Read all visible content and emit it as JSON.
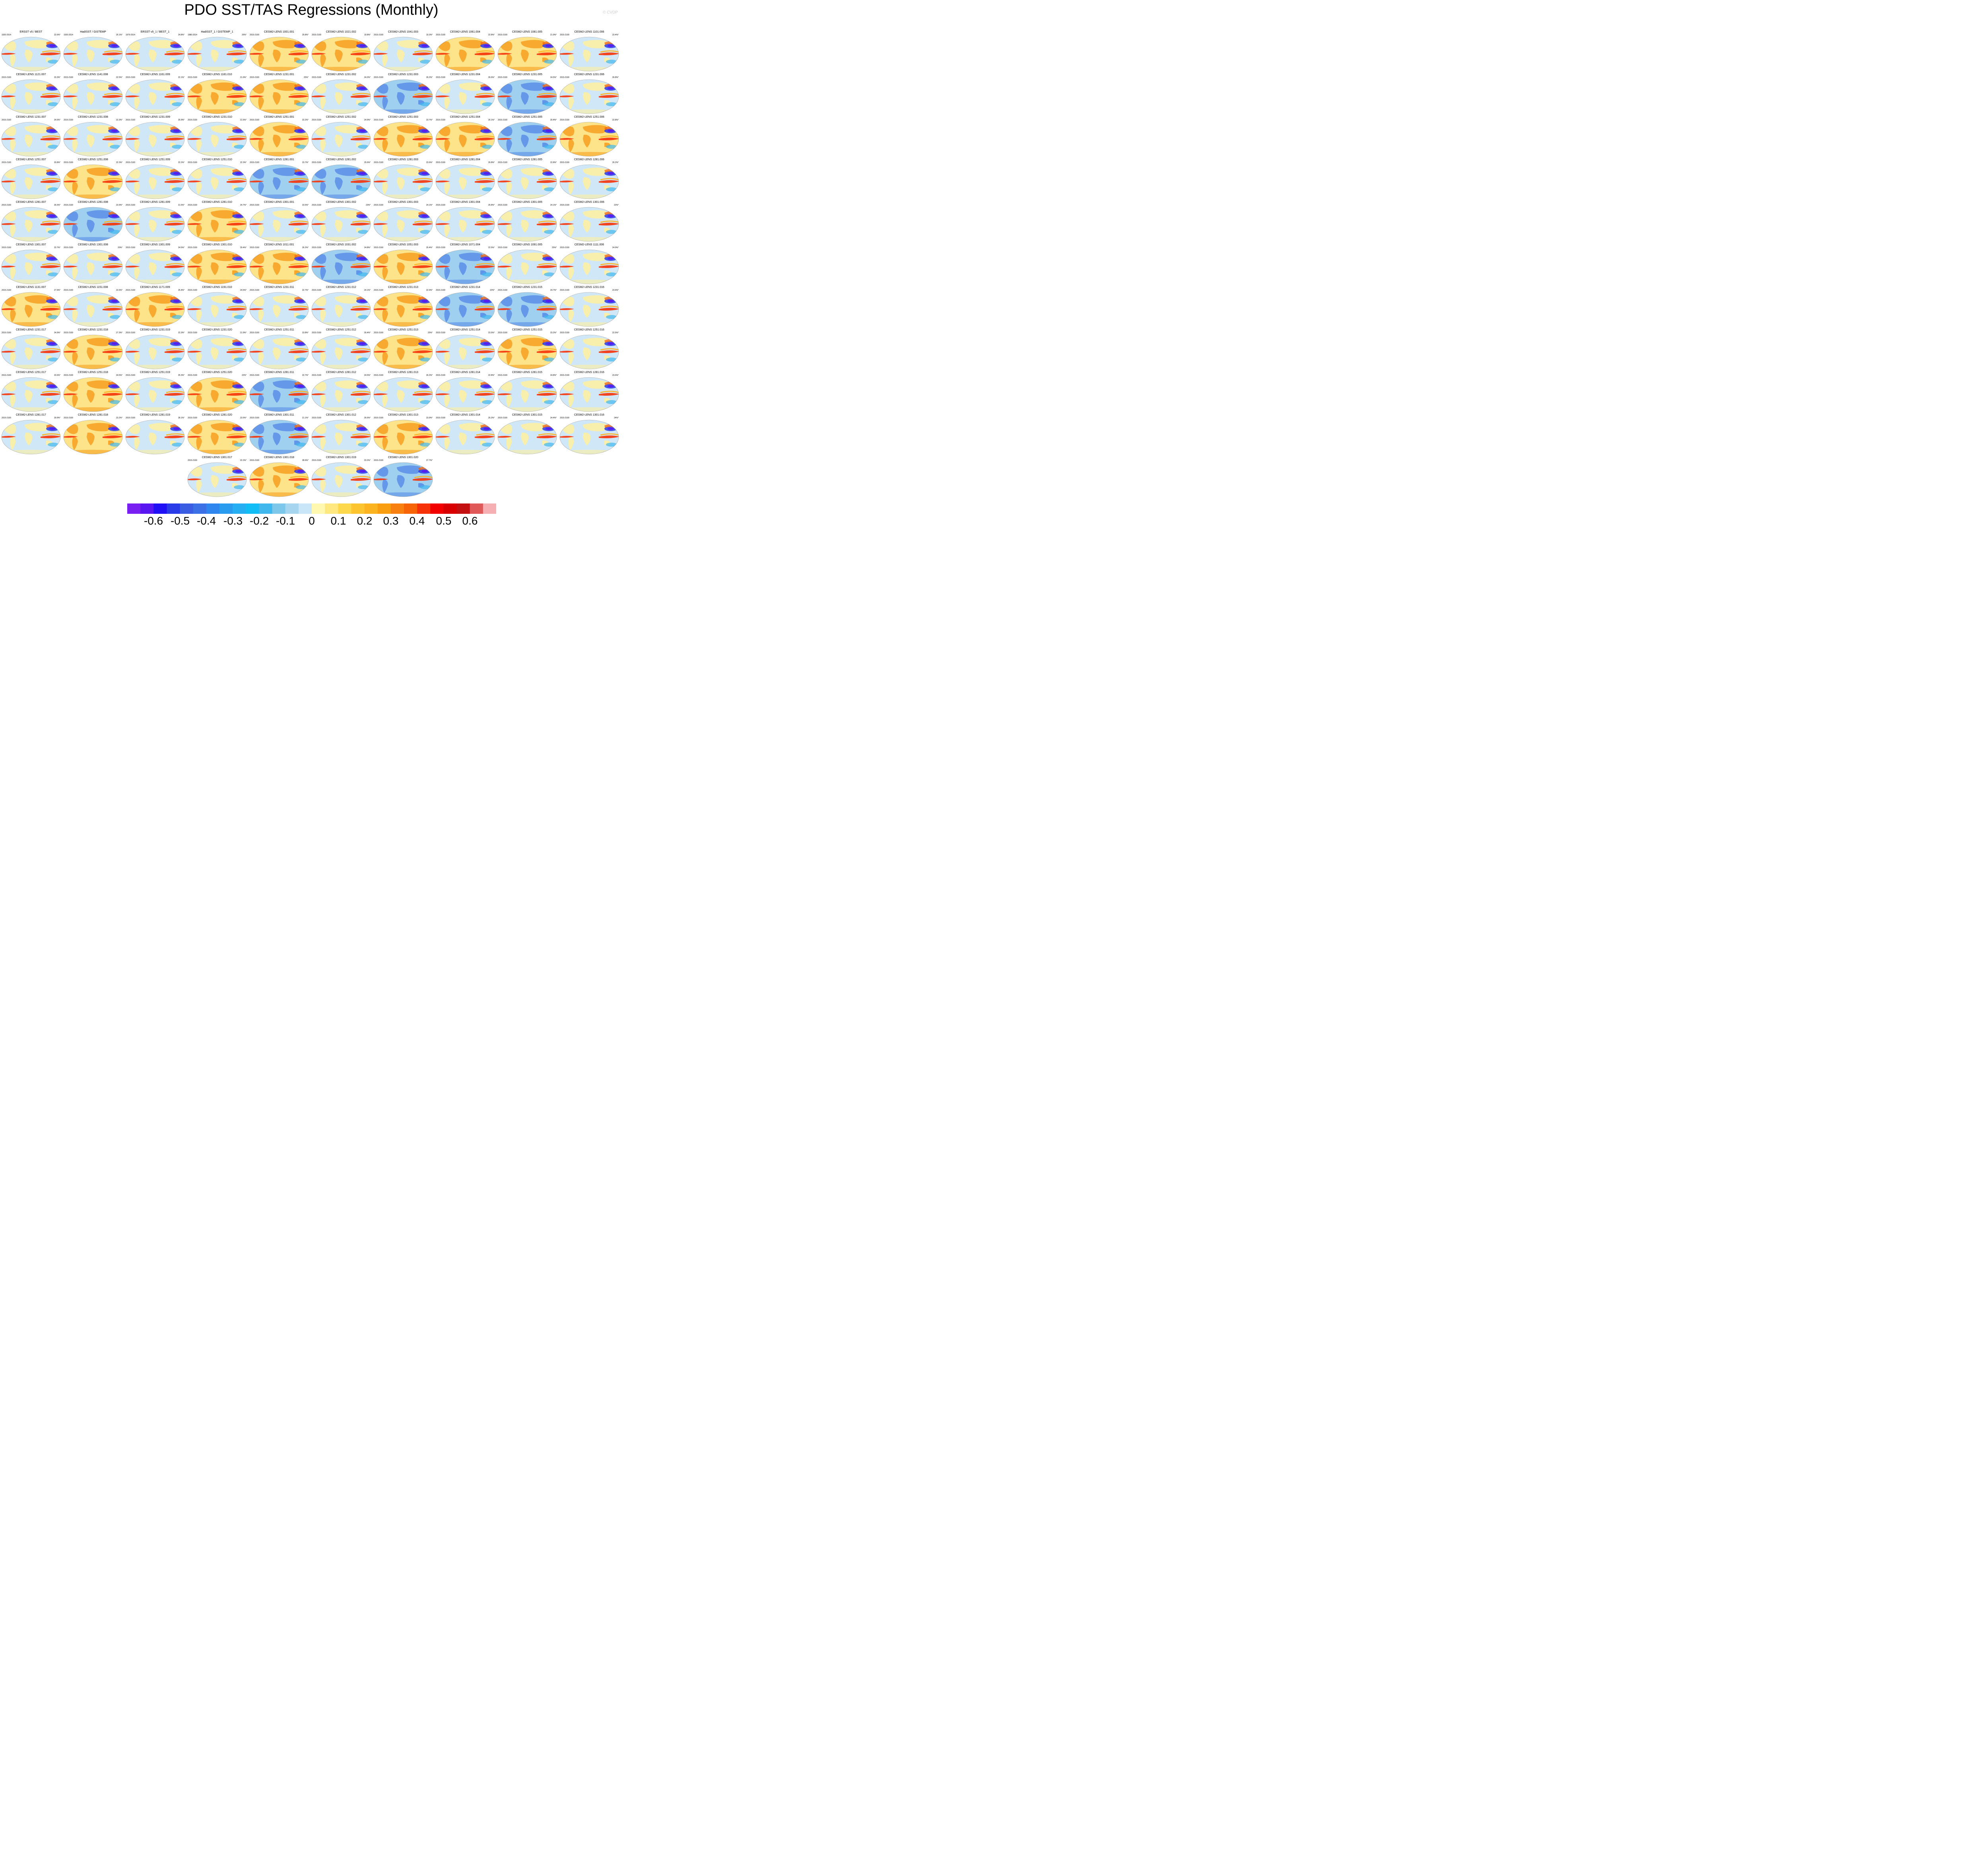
{
  "title": "PDO SST/TAS Regressions (Monthly)",
  "credit": "© CVDP",
  "colorbar": {
    "colors": [
      "#7a1ff2",
      "#5a16f0",
      "#2010f5",
      "#2a3ce8",
      "#3a5de3",
      "#3b70e6",
      "#2e86ee",
      "#2a9cf0",
      "#26aef2",
      "#12bcf5",
      "#40b8ee",
      "#7cc7ea",
      "#a6d6ef",
      "#c8e6f7",
      "#fff8b0",
      "#ffe880",
      "#fdd84d",
      "#fcc530",
      "#fcb320",
      "#f99e10",
      "#f88010",
      "#f76408",
      "#f63208",
      "#f20000",
      "#d80000",
      "#c41010",
      "#e05858",
      "#f6b0b4"
    ],
    "tick_labels": [
      "-0.6",
      "-0.5",
      "-0.4",
      "-0.3",
      "-0.2",
      "-0.1",
      "0",
      "0.1",
      "0.2",
      "0.3",
      "0.4",
      "0.5",
      "0.6"
    ]
  },
  "panels": [
    {
      "name": "ERSST v5 / BEST",
      "years": "1920-2014",
      "pct": "22.6%*"
    },
    {
      "name": "HadISST / GISTEMP",
      "years": "1920-2014",
      "pct": "25.1%*"
    },
    {
      "name": "ERSST v5_1 / BEST_1",
      "years": "1979-2014",
      "pct": "24.8%*"
    },
    {
      "name": "HadISST_1 / GISTEMP_1",
      "years": "1980-2014",
      "pct": "26%*"
    },
    {
      "name": "CESM2-LENS 1001.001",
      "years": "2015-2100",
      "pct": "25.8%*"
    },
    {
      "name": "CESM2-LENS 1021.002",
      "years": "2015-2100",
      "pct": "19.8%*"
    },
    {
      "name": "CESM2-LENS 1041.003",
      "years": "2015-2100",
      "pct": "19.3%*"
    },
    {
      "name": "CESM2-LENS 1061.004",
      "years": "2015-2100",
      "pct": "22.8%*"
    },
    {
      "name": "CESM2-LENS 1081.005",
      "years": "2015-2100",
      "pct": "21.9%*"
    },
    {
      "name": "CESM2-LENS 1101.006",
      "years": "2015-2100",
      "pct": "23.4%*"
    },
    {
      "name": "CESM2-LENS 1121.007",
      "years": "2015-2100",
      "pct": "23.3%*"
    },
    {
      "name": "CESM2-LENS 1141.008",
      "years": "2015-2100",
      "pct": "22.5%*"
    },
    {
      "name": "CESM2-LENS 1161.009",
      "years": "2015-2100",
      "pct": "22.1%*"
    },
    {
      "name": "CESM2-LENS 1181.010",
      "years": "2015-2100",
      "pct": "21.9%*"
    },
    {
      "name": "CESM2-LENS 1231.001",
      "years": "2015-2100",
      "pct": "25%*"
    },
    {
      "name": "CESM2-LENS 1231.002",
      "years": "2015-2100",
      "pct": "24.2%*"
    },
    {
      "name": "CESM2-LENS 1231.003",
      "years": "2015-2100",
      "pct": "26.2%*"
    },
    {
      "name": "CESM2-LENS 1231.004",
      "years": "2015-2100",
      "pct": "26.6%*"
    },
    {
      "name": "CESM2-LENS 1231.005",
      "years": "2015-2100",
      "pct": "24.5%*"
    },
    {
      "name": "CESM2-LENS 1231.006",
      "years": "2015-2100",
      "pct": "26.8%*"
    },
    {
      "name": "CESM2-LENS 1231.007",
      "years": "2015-2100",
      "pct": "24.6%*"
    },
    {
      "name": "CESM2-LENS 1231.008",
      "years": "2015-2100",
      "pct": "22.3%*"
    },
    {
      "name": "CESM2-LENS 1231.009",
      "years": "2015-2100",
      "pct": "25.9%*"
    },
    {
      "name": "CESM2-LENS 1231.010",
      "years": "2015-2100",
      "pct": "21.5%*"
    },
    {
      "name": "CESM2-LENS 1251.001",
      "years": "2015-2100",
      "pct": "22.2%*"
    },
    {
      "name": "CESM2-LENS 1251.002",
      "years": "2015-2100",
      "pct": "24.9%*"
    },
    {
      "name": "CESM2-LENS 1251.003",
      "years": "2015-2100",
      "pct": "23.7%*"
    },
    {
      "name": "CESM2-LENS 1251.004",
      "years": "2015-2100",
      "pct": "26.1%*"
    },
    {
      "name": "CESM2-LENS 1251.005",
      "years": "2015-2100",
      "pct": "20.4%*"
    },
    {
      "name": "CESM2-LENS 1251.006",
      "years": "2015-2100",
      "pct": "22.8%*"
    },
    {
      "name": "CESM2-LENS 1251.007",
      "years": "2015-2100",
      "pct": "20.8%*"
    },
    {
      "name": "CESM2-LENS 1251.008",
      "years": "2015-2100",
      "pct": "22.3%*"
    },
    {
      "name": "CESM2-LENS 1251.009",
      "years": "2015-2100",
      "pct": "22.2%*"
    },
    {
      "name": "CESM2-LENS 1251.010",
      "years": "2015-2100",
      "pct": "22.3%*"
    },
    {
      "name": "CESM2-LENS 1281.001",
      "years": "2015-2100",
      "pct": "23.7%*"
    },
    {
      "name": "CESM2-LENS 1281.002",
      "years": "2015-2100",
      "pct": "25.6%*"
    },
    {
      "name": "CESM2-LENS 1281.003",
      "years": "2015-2100",
      "pct": "23.6%*"
    },
    {
      "name": "CESM2-LENS 1281.004",
      "years": "2015-2100",
      "pct": "26.8%*"
    },
    {
      "name": "CESM2-LENS 1281.005",
      "years": "2015-2100",
      "pct": "22.8%*"
    },
    {
      "name": "CESM2-LENS 1281.006",
      "years": "2015-2100",
      "pct": "26.2%*"
    },
    {
      "name": "CESM2-LENS 1281.007",
      "years": "2015-2100",
      "pct": "26.5%*"
    },
    {
      "name": "CESM2-LENS 1281.008",
      "years": "2015-2100",
      "pct": "23.9%*"
    },
    {
      "name": "CESM2-LENS 1281.009",
      "years": "2015-2100",
      "pct": "21.5%*"
    },
    {
      "name": "CESM2-LENS 1281.010",
      "years": "2015-2100",
      "pct": "24.7%*"
    },
    {
      "name": "CESM2-LENS 1301.001",
      "years": "2015-2100",
      "pct": "23.5%*"
    },
    {
      "name": "CESM2-LENS 1301.002",
      "years": "2015-2100",
      "pct": "23%*"
    },
    {
      "name": "CESM2-LENS 1301.003",
      "years": "2015-2100",
      "pct": "24.1%*"
    },
    {
      "name": "CESM2-LENS 1301.004",
      "years": "2015-2100",
      "pct": "25.8%*"
    },
    {
      "name": "CESM2-LENS 1301.005",
      "years": "2015-2100",
      "pct": "24.1%*"
    },
    {
      "name": "CESM2-LENS 1301.006",
      "years": "2015-2100",
      "pct": "22%*"
    },
    {
      "name": "CESM2-LENS 1301.007",
      "years": "2015-2100",
      "pct": "23.7%*"
    },
    {
      "name": "CESM2-LENS 1301.008",
      "years": "2015-2100",
      "pct": "20%*"
    },
    {
      "name": "CESM2-LENS 1301.009",
      "years": "2015-2100",
      "pct": "24.5%*"
    },
    {
      "name": "CESM2-LENS 1301.010",
      "years": "2015-2100",
      "pct": "29.4%*"
    },
    {
      "name": "CESM2-LENS 1011.001",
      "years": "2015-2100",
      "pct": "26.2%*"
    },
    {
      "name": "CESM2-LENS 1031.002",
      "years": "2015-2100",
      "pct": "24.8%*"
    },
    {
      "name": "CESM2-LENS 1051.003",
      "years": "2015-2100",
      "pct": "25.4%*"
    },
    {
      "name": "CESM2-LENS 1071.004",
      "years": "2015-2100",
      "pct": "22.5%*"
    },
    {
      "name": "CESM2-LENS 1091.005",
      "years": "2015-2100",
      "pct": "25%*"
    },
    {
      "name": "CESM2-LENS 1111.006",
      "years": "2015-2100",
      "pct": "24.9%*"
    },
    {
      "name": "CESM2-LENS 1131.007",
      "years": "2015-2100",
      "pct": "27.9%*"
    },
    {
      "name": "CESM2-LENS 1151.008",
      "years": "2015-2100",
      "pct": "22.6%*"
    },
    {
      "name": "CESM2-LENS 1171.009",
      "years": "2015-2100",
      "pct": "25.4%*"
    },
    {
      "name": "CESM2-LENS 1191.010",
      "years": "2015-2100",
      "pct": "24.5%*"
    },
    {
      "name": "CESM2-LENS 1231.011",
      "years": "2015-2100",
      "pct": "22.7%*"
    },
    {
      "name": "CESM2-LENS 1231.012",
      "years": "2015-2100",
      "pct": "24.1%*"
    },
    {
      "name": "CESM2-LENS 1231.013",
      "years": "2015-2100",
      "pct": "22.9%*"
    },
    {
      "name": "CESM2-LENS 1231.014",
      "years": "2015-2100",
      "pct": "22%*"
    },
    {
      "name": "CESM2-LENS 1231.015",
      "years": "2015-2100",
      "pct": "24.7%*"
    },
    {
      "name": "CESM2-LENS 1231.016",
      "years": "2015-2100",
      "pct": "23.6%*"
    },
    {
      "name": "CESM2-LENS 1231.017",
      "years": "2015-2100",
      "pct": "24.9%*"
    },
    {
      "name": "CESM2-LENS 1231.018",
      "years": "2015-2100",
      "pct": "27.3%*"
    },
    {
      "name": "CESM2-LENS 1231.019",
      "years": "2015-2100",
      "pct": "22.3%*"
    },
    {
      "name": "CESM2-LENS 1231.020",
      "years": "2015-2100",
      "pct": "21.9%*"
    },
    {
      "name": "CESM2-LENS 1251.011",
      "years": "2015-2100",
      "pct": "23.8%*"
    },
    {
      "name": "CESM2-LENS 1251.012",
      "years": "2015-2100",
      "pct": "30.4%*"
    },
    {
      "name": "CESM2-LENS 1251.013",
      "years": "2015-2100",
      "pct": "25%*"
    },
    {
      "name": "CESM2-LENS 1251.014",
      "years": "2015-2100",
      "pct": "23.5%*"
    },
    {
      "name": "CESM2-LENS 1251.015",
      "years": "2015-2100",
      "pct": "23.2%*"
    },
    {
      "name": "CESM2-LENS 1251.016",
      "years": "2015-2100",
      "pct": "22.5%*"
    },
    {
      "name": "CESM2-LENS 1251.017",
      "years": "2015-2100",
      "pct": "23.6%*"
    },
    {
      "name": "CESM2-LENS 1251.018",
      "years": "2015-2100",
      "pct": "24.5%*"
    },
    {
      "name": "CESM2-LENS 1251.019",
      "years": "2015-2100",
      "pct": "25.3%*"
    },
    {
      "name": "CESM2-LENS 1251.020",
      "years": "2015-2100",
      "pct": "22%*"
    },
    {
      "name": "CESM2-LENS 1281.011",
      "years": "2015-2100",
      "pct": "22.7%*"
    },
    {
      "name": "CESM2-LENS 1281.012",
      "years": "2015-2100",
      "pct": "24.5%*"
    },
    {
      "name": "CESM2-LENS 1281.013",
      "years": "2015-2100",
      "pct": "26.2%*"
    },
    {
      "name": "CESM2-LENS 1281.014",
      "years": "2015-2100",
      "pct": "22.8%*"
    },
    {
      "name": "CESM2-LENS 1281.015",
      "years": "2015-2100",
      "pct": "24.8%*"
    },
    {
      "name": "CESM2-LENS 1281.016",
      "years": "2015-2100",
      "pct": "23.6%*"
    },
    {
      "name": "CESM2-LENS 1281.017",
      "years": "2015-2100",
      "pct": "29.9%*"
    },
    {
      "name": "CESM2-LENS 1281.018",
      "years": "2015-2100",
      "pct": "23.2%*"
    },
    {
      "name": "CESM2-LENS 1281.019",
      "years": "2015-2100",
      "pct": "28.1%*"
    },
    {
      "name": "CESM2-LENS 1281.020",
      "years": "2015-2100",
      "pct": "23.5%*"
    },
    {
      "name": "CESM2-LENS 1301.011",
      "years": "2015-2100",
      "pct": "21.1%*"
    },
    {
      "name": "CESM2-LENS 1301.012",
      "years": "2015-2100",
      "pct": "26.6%*"
    },
    {
      "name": "CESM2-LENS 1301.013",
      "years": "2015-2100",
      "pct": "23.9%*"
    },
    {
      "name": "CESM2-LENS 1301.014",
      "years": "2015-2100",
      "pct": "25.2%*"
    },
    {
      "name": "CESM2-LENS 1301.015",
      "years": "2015-2100",
      "pct": "24.4%*"
    },
    {
      "name": "CESM2-LENS 1301.016",
      "years": "2015-2100",
      "pct": "24%*"
    },
    {
      "name": "CESM2-LENS 1301.017",
      "years": "2015-2100",
      "pct": "22.2%*"
    },
    {
      "name": "CESM2-LENS 1301.018",
      "years": "2015-2100",
      "pct": "28.6%*"
    },
    {
      "name": "CESM2-LENS 1301.019",
      "years": "2015-2100",
      "pct": "23.2%*"
    },
    {
      "name": "CESM2-LENS 1301.020",
      "years": "2015-2100",
      "pct": "27.7%*"
    }
  ]
}
